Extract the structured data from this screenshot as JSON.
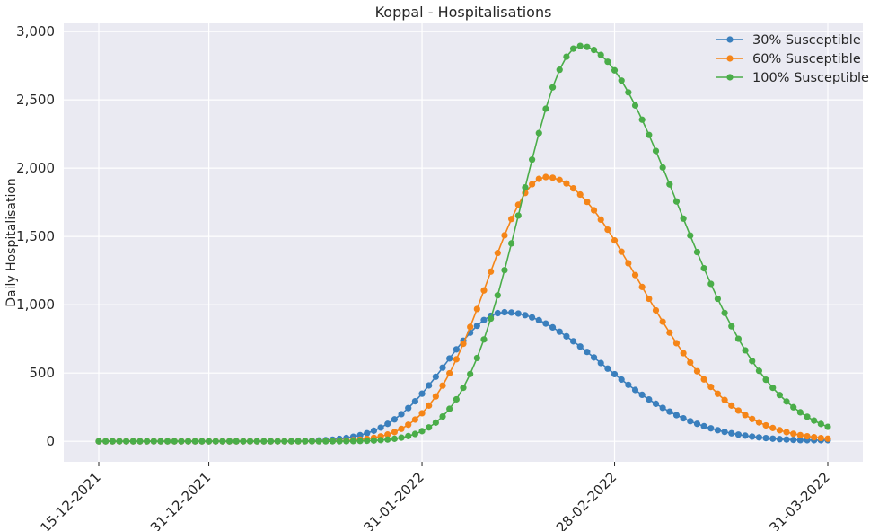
{
  "chart_data": {
    "type": "line",
    "title": "Koppal - Hospitalisations",
    "xlabel": "",
    "ylabel": "Daily Hospitalisation",
    "x_start": "15-12-2021",
    "x_end": "31-03-2022",
    "x_ticks": [
      "15-12-2021",
      "31-12-2021",
      "31-01-2022",
      "28-02-2022",
      "31-03-2022"
    ],
    "ylim": [
      -150,
      3060
    ],
    "y_ticks": [
      0,
      500,
      1000,
      1500,
      2000,
      2500,
      3000
    ],
    "y_tick_labels": [
      "0",
      "500",
      "1,000",
      "1,500",
      "2,000",
      "2,500",
      "3,000"
    ],
    "grid": true,
    "legend_position": "top-right",
    "series": [
      {
        "name": "30% Susceptible",
        "color": "#3a7fbd",
        "peak_date": "12-02-2022",
        "peak_value": 945,
        "left_width_days": 8.5,
        "right_width_days": 14,
        "final_value": 8
      },
      {
        "name": "60% Susceptible",
        "color": "#f58518",
        "peak_date": "18-02-2022",
        "peak_value": 1935,
        "left_width_days": 8.5,
        "right_width_days": 13.5,
        "final_value": 15
      },
      {
        "name": "100% Susceptible",
        "color": "#4aad49",
        "peak_date": "23-02-2022",
        "peak_value": 2895,
        "left_width_days": 8.5,
        "right_width_days": 14,
        "final_value": 60
      }
    ]
  }
}
